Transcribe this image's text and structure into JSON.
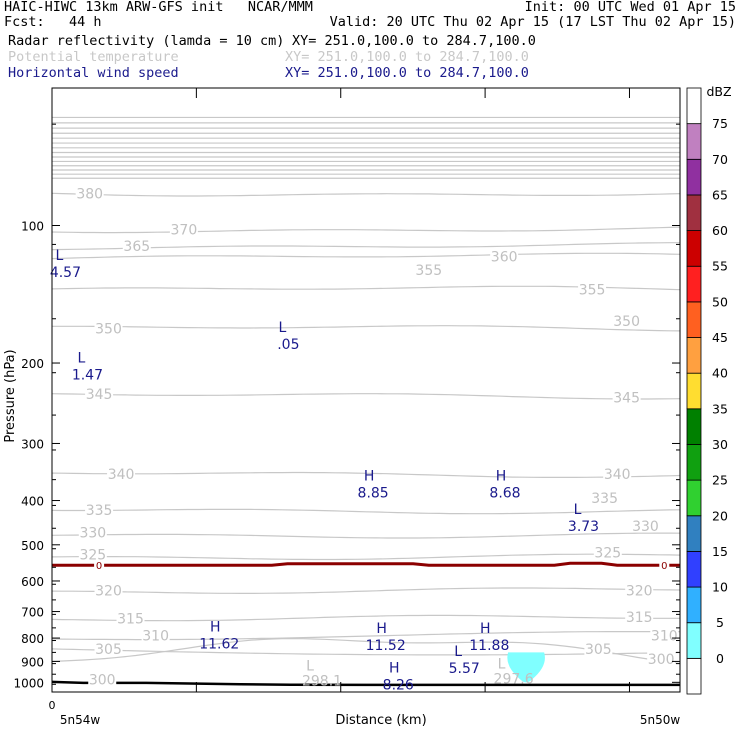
{
  "header": {
    "line1_left": "HAIC-HIWC 13km ARW-GFS init   NCAR/MMM",
    "line1_right": "Init: 00 UTC Wed 01 Apr 15",
    "line2_left": "Fcst:   44 h",
    "line2_right": "Valid: 20 UTC Thu 02 Apr 15 (17 LST Thu 02 Apr 15)",
    "fields": [
      {
        "name": "Radar reflectivity (lamda = 10 cm)",
        "xy": "XY= 251.0,100.0 to 284.7,100.0",
        "color": "#000000"
      },
      {
        "name": "Potential temperature",
        "xy": "XY= 251.0,100.0 to 284.7,100.0",
        "color": "#c8c8c8"
      },
      {
        "name": "Horizontal wind speed",
        "xy": "XY= 251.0,100.0 to 284.7,100.0",
        "color": "#1a1a8c"
      }
    ]
  },
  "chart_data": {
    "type": "contour-cross-section",
    "ylabel": "Pressure (hPa)",
    "xlabel": "Distance (km)",
    "ylim": [
      1050,
      50
    ],
    "yscale": "log",
    "yticks": [
      100,
      200,
      300,
      400,
      500,
      600,
      700,
      800,
      900,
      1000
    ],
    "x_start_label": "5n54w",
    "x_end_label": "5n50w",
    "x_zero_label": "0",
    "theta_contours": [
      {
        "label": "380",
        "p": 85
      },
      {
        "label": "370",
        "p": 102
      },
      {
        "label": "365",
        "p": 111
      },
      {
        "label": "360",
        "p": 117
      },
      {
        "label": "355",
        "p": 138
      },
      {
        "label": "350",
        "p": 168
      },
      {
        "label": "345",
        "p": 236
      },
      {
        "label": "340",
        "p": 350
      },
      {
        "label": "335",
        "p": 420
      },
      {
        "label": "330",
        "p": 475
      },
      {
        "label": "325",
        "p": 530
      },
      {
        "label": "320",
        "p": 630
      },
      {
        "label": "315",
        "p": 725
      },
      {
        "label": "310",
        "p": 790
      },
      {
        "label": "305",
        "p": 845
      },
      {
        "label": "300",
        "p": 900
      }
    ],
    "theta_labels": [
      {
        "text": "380",
        "xf": 0.06,
        "p": 85
      },
      {
        "text": "370",
        "xf": 0.21,
        "p": 102
      },
      {
        "text": "365",
        "xf": 0.135,
        "p": 111
      },
      {
        "text": "360",
        "xf": 0.72,
        "p": 117
      },
      {
        "text": "355",
        "xf": 0.6,
        "p": 125
      },
      {
        "text": "355",
        "xf": 0.86,
        "p": 138
      },
      {
        "text": "350",
        "xf": 0.09,
        "p": 168
      },
      {
        "text": "350",
        "xf": 0.915,
        "p": 162
      },
      {
        "text": "345",
        "xf": 0.075,
        "p": 234
      },
      {
        "text": "345",
        "xf": 0.915,
        "p": 238
      },
      {
        "text": "340",
        "xf": 0.11,
        "p": 350
      },
      {
        "text": "340",
        "xf": 0.9,
        "p": 350
      },
      {
        "text": "335",
        "xf": 0.075,
        "p": 420
      },
      {
        "text": "335",
        "xf": 0.88,
        "p": 395
      },
      {
        "text": "330",
        "xf": 0.065,
        "p": 470
      },
      {
        "text": "330",
        "xf": 0.945,
        "p": 455
      },
      {
        "text": "325",
        "xf": 0.065,
        "p": 525
      },
      {
        "text": "325",
        "xf": 0.885,
        "p": 520
      },
      {
        "text": "320",
        "xf": 0.09,
        "p": 630
      },
      {
        "text": "320",
        "xf": 0.935,
        "p": 630
      },
      {
        "text": "315",
        "xf": 0.125,
        "p": 725
      },
      {
        "text": "315",
        "xf": 0.935,
        "p": 720
      },
      {
        "text": "310",
        "xf": 0.165,
        "p": 790
      },
      {
        "text": "310",
        "xf": 0.975,
        "p": 790
      },
      {
        "text": "305",
        "xf": 0.09,
        "p": 845
      },
      {
        "text": "305",
        "xf": 0.87,
        "p": 845
      },
      {
        "text": "300",
        "xf": 0.97,
        "p": 890
      },
      {
        "text": "300",
        "xf": 0.08,
        "p": 985
      }
    ],
    "theta_extrema": [
      {
        "letter": "L",
        "value": "298.1",
        "xf": 0.43,
        "p": 990
      },
      {
        "letter": "L",
        "value": "297.6",
        "xf": 0.735,
        "p": 980
      }
    ],
    "wind_extrema": [
      {
        "letter": "L",
        "value": "4.57",
        "xf": 0.015,
        "p": 125
      },
      {
        "letter": "L",
        "value": "1.47",
        "xf": 0.05,
        "p": 210
      },
      {
        "letter": "L",
        "value": ".05",
        "xf": 0.37,
        "p": 180
      },
      {
        "letter": "H",
        "value": "8.85",
        "xf": 0.505,
        "p": 380
      },
      {
        "letter": "H",
        "value": "8.68",
        "xf": 0.715,
        "p": 380
      },
      {
        "letter": "L",
        "value": "3.73",
        "xf": 0.84,
        "p": 450
      },
      {
        "letter": "H",
        "value": "11.62",
        "xf": 0.26,
        "p": 815
      },
      {
        "letter": "H",
        "value": "11.52",
        "xf": 0.525,
        "p": 820
      },
      {
        "letter": "H",
        "value": "11.88",
        "xf": 0.69,
        "p": 820
      },
      {
        "letter": "L",
        "value": "5.57",
        "xf": 0.65,
        "p": 920
      },
      {
        "letter": "H",
        "value": "8.26",
        "xf": 0.545,
        "p": 1000
      }
    ],
    "freezing_level": {
      "label": "0",
      "p": 553,
      "color": "#8b0000"
    },
    "reflectivity_cell": {
      "xf_center": 0.755,
      "p_top": 860,
      "p_bottom": 985,
      "dbz": 7,
      "color": "#80ffff"
    },
    "colorbar": {
      "title": "dBZ",
      "levels": [
        "0",
        "5",
        "10",
        "15",
        "20",
        "25",
        "30",
        "35",
        "40",
        "45",
        "50",
        "55",
        "60",
        "65",
        "70",
        "75"
      ],
      "colors": [
        "#ffffff",
        "#80ffff",
        "#30b0ff",
        "#3040ff",
        "#3080c0",
        "#30d030",
        "#10a010",
        "#008000",
        "#ffdd30",
        "#ffa040",
        "#ff6020",
        "#ff2020",
        "#cc0000",
        "#a03040",
        "#9030a0",
        "#c080c0",
        "#ffffff"
      ]
    }
  }
}
